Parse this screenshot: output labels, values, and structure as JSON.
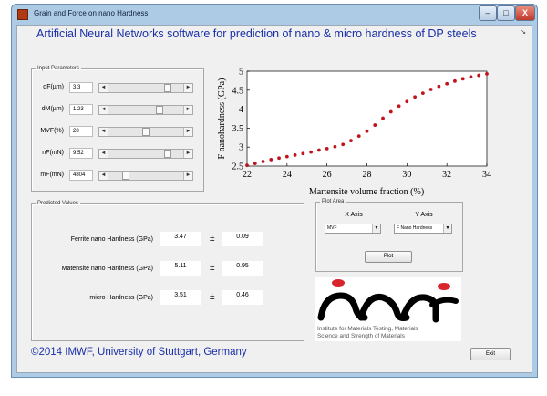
{
  "window": {
    "title": "Grain and Force on nano Hardness",
    "min_glyph": "–",
    "max_glyph": "□",
    "close_glyph": "X",
    "dock_glyph": "↘"
  },
  "app_title": "Artificial Neural Networks software for prediction of nano & micro hardness of DP steels",
  "input_parameters": {
    "legend": "Input Parameters",
    "left_arrow": "◄",
    "right_arrow": "►",
    "params": [
      {
        "label": "dF(µm)",
        "value": "3.3",
        "slider_fraction": 0.82
      },
      {
        "label": "dM(µm)",
        "value": "1.23",
        "slider_fraction": 0.7
      },
      {
        "label": "MVF(%)",
        "value": "28",
        "slider_fraction": 0.5
      },
      {
        "label": "nF(mN)",
        "value": "9.52",
        "slider_fraction": 0.82
      },
      {
        "label": "mF(mN)",
        "value": "4804",
        "slider_fraction": 0.2
      }
    ]
  },
  "predicted_values": {
    "legend": "Predicted Values",
    "pm_symbol": "±",
    "rows": [
      {
        "label": "Ferrite nano Hardness (GPa)",
        "value": "3.47",
        "error": "0.09"
      },
      {
        "label": "Matensite nano Hardness (GPa)",
        "value": "5.11",
        "error": "0.95"
      },
      {
        "label": "micro Hardness (GPa)",
        "value": "3.51",
        "error": "0.46"
      }
    ]
  },
  "plot_area": {
    "legend": "Plot Area",
    "x_axis_caption": "X Axis",
    "y_axis_caption": "Y Axis",
    "x_axis_selected": "MVF",
    "y_axis_selected": "F Nano Hardness",
    "dropdown_glyph": "▼",
    "plot_button": "Plot"
  },
  "logo": {
    "line1": "Institute for Materials Testing, Materials",
    "line2": "Science and Strength of Materials"
  },
  "copyright": "©2014 IMWF, University of Stuttgart, Germany",
  "exit_button": "Exit",
  "colors": {
    "accent_blue": "#1a2fa8",
    "marker_red": "#c0141b",
    "logo_red": "#d8242a"
  },
  "chart_data": {
    "type": "scatter",
    "title": "",
    "xlabel": "Martensite volume fraction (%)",
    "ylabel": "F nanohardness (GPa)",
    "xlim": [
      22,
      34
    ],
    "ylim": [
      2.5,
      5
    ],
    "xticks": [
      22,
      24,
      26,
      28,
      30,
      32,
      34
    ],
    "yticks": [
      2.5,
      3,
      3.5,
      4,
      4.5,
      5
    ],
    "grid": false,
    "series": [
      {
        "marker": "circle",
        "color": "#c0141b",
        "x": [
          22.0,
          22.4,
          22.8,
          23.2,
          23.6,
          24.0,
          24.4,
          24.8,
          25.2,
          25.6,
          26.0,
          26.4,
          26.8,
          27.2,
          27.6,
          28.0,
          28.4,
          28.8,
          29.2,
          29.6,
          30.0,
          30.4,
          30.8,
          31.2,
          31.6,
          32.0,
          32.4,
          32.8,
          33.2,
          33.6,
          34.0
        ],
        "y": [
          2.52,
          2.57,
          2.62,
          2.67,
          2.71,
          2.75,
          2.79,
          2.83,
          2.87,
          2.92,
          2.96,
          3.01,
          3.07,
          3.17,
          3.29,
          3.42,
          3.58,
          3.76,
          3.93,
          4.08,
          4.2,
          4.32,
          4.42,
          4.52,
          4.6,
          4.67,
          4.74,
          4.8,
          4.85,
          4.89,
          4.93
        ]
      }
    ]
  }
}
